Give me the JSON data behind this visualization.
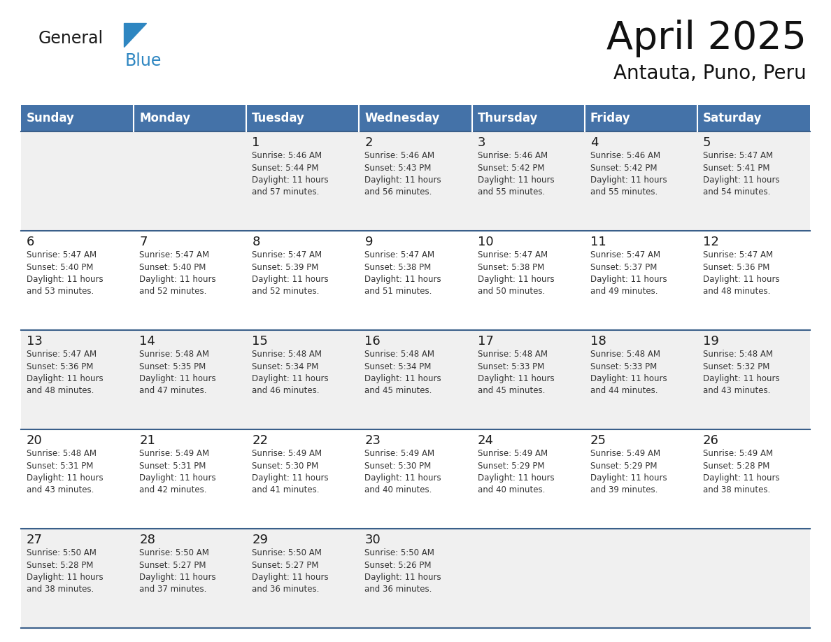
{
  "title": "April 2025",
  "subtitle": "Antauta, Puno, Peru",
  "header_bg": "#4472a8",
  "header_text": "#ffffff",
  "row_bg_light": "#f0f0f0",
  "row_bg_white": "#ffffff",
  "separator_color": "#3a5f8a",
  "logo_text_color": "#1a1a1a",
  "logo_blue_color": "#2e86c1",
  "day_text_color": "#1a1a1a",
  "info_text_color": "#333333",
  "day_headers": [
    "Sunday",
    "Monday",
    "Tuesday",
    "Wednesday",
    "Thursday",
    "Friday",
    "Saturday"
  ],
  "days": [
    {
      "day": 1,
      "col": 2,
      "row": 0,
      "sunrise": "5:46 AM",
      "sunset": "5:44 PM",
      "daylight": "11 hours\nand 57 minutes."
    },
    {
      "day": 2,
      "col": 3,
      "row": 0,
      "sunrise": "5:46 AM",
      "sunset": "5:43 PM",
      "daylight": "11 hours\nand 56 minutes."
    },
    {
      "day": 3,
      "col": 4,
      "row": 0,
      "sunrise": "5:46 AM",
      "sunset": "5:42 PM",
      "daylight": "11 hours\nand 55 minutes."
    },
    {
      "day": 4,
      "col": 5,
      "row": 0,
      "sunrise": "5:46 AM",
      "sunset": "5:42 PM",
      "daylight": "11 hours\nand 55 minutes."
    },
    {
      "day": 5,
      "col": 6,
      "row": 0,
      "sunrise": "5:47 AM",
      "sunset": "5:41 PM",
      "daylight": "11 hours\nand 54 minutes."
    },
    {
      "day": 6,
      "col": 0,
      "row": 1,
      "sunrise": "5:47 AM",
      "sunset": "5:40 PM",
      "daylight": "11 hours\nand 53 minutes."
    },
    {
      "day": 7,
      "col": 1,
      "row": 1,
      "sunrise": "5:47 AM",
      "sunset": "5:40 PM",
      "daylight": "11 hours\nand 52 minutes."
    },
    {
      "day": 8,
      "col": 2,
      "row": 1,
      "sunrise": "5:47 AM",
      "sunset": "5:39 PM",
      "daylight": "11 hours\nand 52 minutes."
    },
    {
      "day": 9,
      "col": 3,
      "row": 1,
      "sunrise": "5:47 AM",
      "sunset": "5:38 PM",
      "daylight": "11 hours\nand 51 minutes."
    },
    {
      "day": 10,
      "col": 4,
      "row": 1,
      "sunrise": "5:47 AM",
      "sunset": "5:38 PM",
      "daylight": "11 hours\nand 50 minutes."
    },
    {
      "day": 11,
      "col": 5,
      "row": 1,
      "sunrise": "5:47 AM",
      "sunset": "5:37 PM",
      "daylight": "11 hours\nand 49 minutes."
    },
    {
      "day": 12,
      "col": 6,
      "row": 1,
      "sunrise": "5:47 AM",
      "sunset": "5:36 PM",
      "daylight": "11 hours\nand 48 minutes."
    },
    {
      "day": 13,
      "col": 0,
      "row": 2,
      "sunrise": "5:47 AM",
      "sunset": "5:36 PM",
      "daylight": "11 hours\nand 48 minutes."
    },
    {
      "day": 14,
      "col": 1,
      "row": 2,
      "sunrise": "5:48 AM",
      "sunset": "5:35 PM",
      "daylight": "11 hours\nand 47 minutes."
    },
    {
      "day": 15,
      "col": 2,
      "row": 2,
      "sunrise": "5:48 AM",
      "sunset": "5:34 PM",
      "daylight": "11 hours\nand 46 minutes."
    },
    {
      "day": 16,
      "col": 3,
      "row": 2,
      "sunrise": "5:48 AM",
      "sunset": "5:34 PM",
      "daylight": "11 hours\nand 45 minutes."
    },
    {
      "day": 17,
      "col": 4,
      "row": 2,
      "sunrise": "5:48 AM",
      "sunset": "5:33 PM",
      "daylight": "11 hours\nand 45 minutes."
    },
    {
      "day": 18,
      "col": 5,
      "row": 2,
      "sunrise": "5:48 AM",
      "sunset": "5:33 PM",
      "daylight": "11 hours\nand 44 minutes."
    },
    {
      "day": 19,
      "col": 6,
      "row": 2,
      "sunrise": "5:48 AM",
      "sunset": "5:32 PM",
      "daylight": "11 hours\nand 43 minutes."
    },
    {
      "day": 20,
      "col": 0,
      "row": 3,
      "sunrise": "5:48 AM",
      "sunset": "5:31 PM",
      "daylight": "11 hours\nand 43 minutes."
    },
    {
      "day": 21,
      "col": 1,
      "row": 3,
      "sunrise": "5:49 AM",
      "sunset": "5:31 PM",
      "daylight": "11 hours\nand 42 minutes."
    },
    {
      "day": 22,
      "col": 2,
      "row": 3,
      "sunrise": "5:49 AM",
      "sunset": "5:30 PM",
      "daylight": "11 hours\nand 41 minutes."
    },
    {
      "day": 23,
      "col": 3,
      "row": 3,
      "sunrise": "5:49 AM",
      "sunset": "5:30 PM",
      "daylight": "11 hours\nand 40 minutes."
    },
    {
      "day": 24,
      "col": 4,
      "row": 3,
      "sunrise": "5:49 AM",
      "sunset": "5:29 PM",
      "daylight": "11 hours\nand 40 minutes."
    },
    {
      "day": 25,
      "col": 5,
      "row": 3,
      "sunrise": "5:49 AM",
      "sunset": "5:29 PM",
      "daylight": "11 hours\nand 39 minutes."
    },
    {
      "day": 26,
      "col": 6,
      "row": 3,
      "sunrise": "5:49 AM",
      "sunset": "5:28 PM",
      "daylight": "11 hours\nand 38 minutes."
    },
    {
      "day": 27,
      "col": 0,
      "row": 4,
      "sunrise": "5:50 AM",
      "sunset": "5:28 PM",
      "daylight": "11 hours\nand 38 minutes."
    },
    {
      "day": 28,
      "col": 1,
      "row": 4,
      "sunrise": "5:50 AM",
      "sunset": "5:27 PM",
      "daylight": "11 hours\nand 37 minutes."
    },
    {
      "day": 29,
      "col": 2,
      "row": 4,
      "sunrise": "5:50 AM",
      "sunset": "5:27 PM",
      "daylight": "11 hours\nand 36 minutes."
    },
    {
      "day": 30,
      "col": 3,
      "row": 4,
      "sunrise": "5:50 AM",
      "sunset": "5:26 PM",
      "daylight": "11 hours\nand 36 minutes."
    }
  ],
  "row_bg_pattern": [
    1,
    0,
    1,
    0,
    1
  ],
  "title_fontsize": 40,
  "subtitle_fontsize": 20,
  "header_fontsize": 12,
  "day_num_fontsize": 13,
  "info_fontsize": 8.5
}
